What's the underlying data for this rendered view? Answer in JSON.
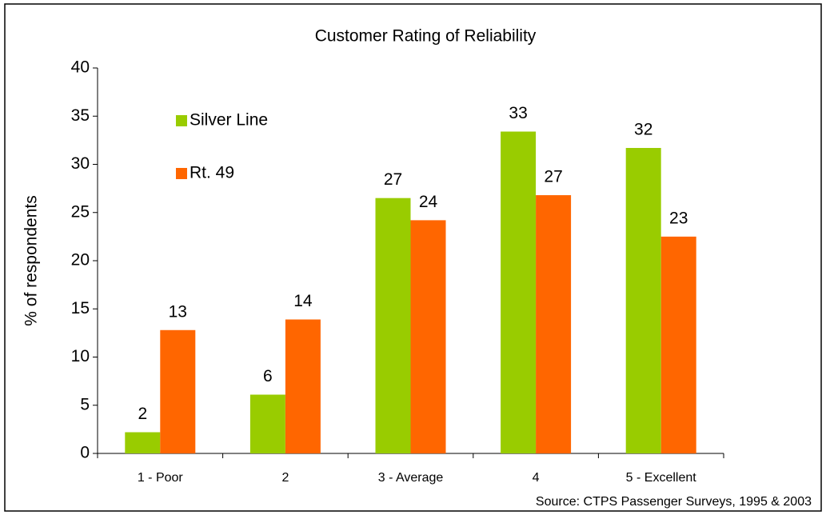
{
  "chart_data": {
    "type": "bar",
    "title": "Customer Rating of Reliability",
    "y_label": "% of respondents",
    "source": "Source: CTPS Passenger Surveys, 1995 & 2003",
    "categories": [
      "1 - Poor",
      "2",
      "3 - Average",
      "4",
      "5 - Excellent"
    ],
    "series": [
      {
        "name": "Silver Line",
        "color": "#99cc00",
        "values": [
          2.2,
          6.1,
          26.5,
          33.4,
          31.7
        ],
        "value_labels": [
          "2",
          "6",
          "27",
          "33",
          "32"
        ]
      },
      {
        "name": "Rt. 49",
        "color": "#ff6600",
        "values": [
          12.8,
          13.9,
          24.2,
          26.8,
          22.5
        ],
        "value_labels": [
          "13",
          "14",
          "24",
          "27",
          "23"
        ]
      }
    ],
    "ylim": [
      0,
      40
    ],
    "yticks": [
      0,
      5,
      10,
      15,
      20,
      25,
      30,
      35,
      40
    ],
    "grid": false,
    "legend": "upper left"
  }
}
